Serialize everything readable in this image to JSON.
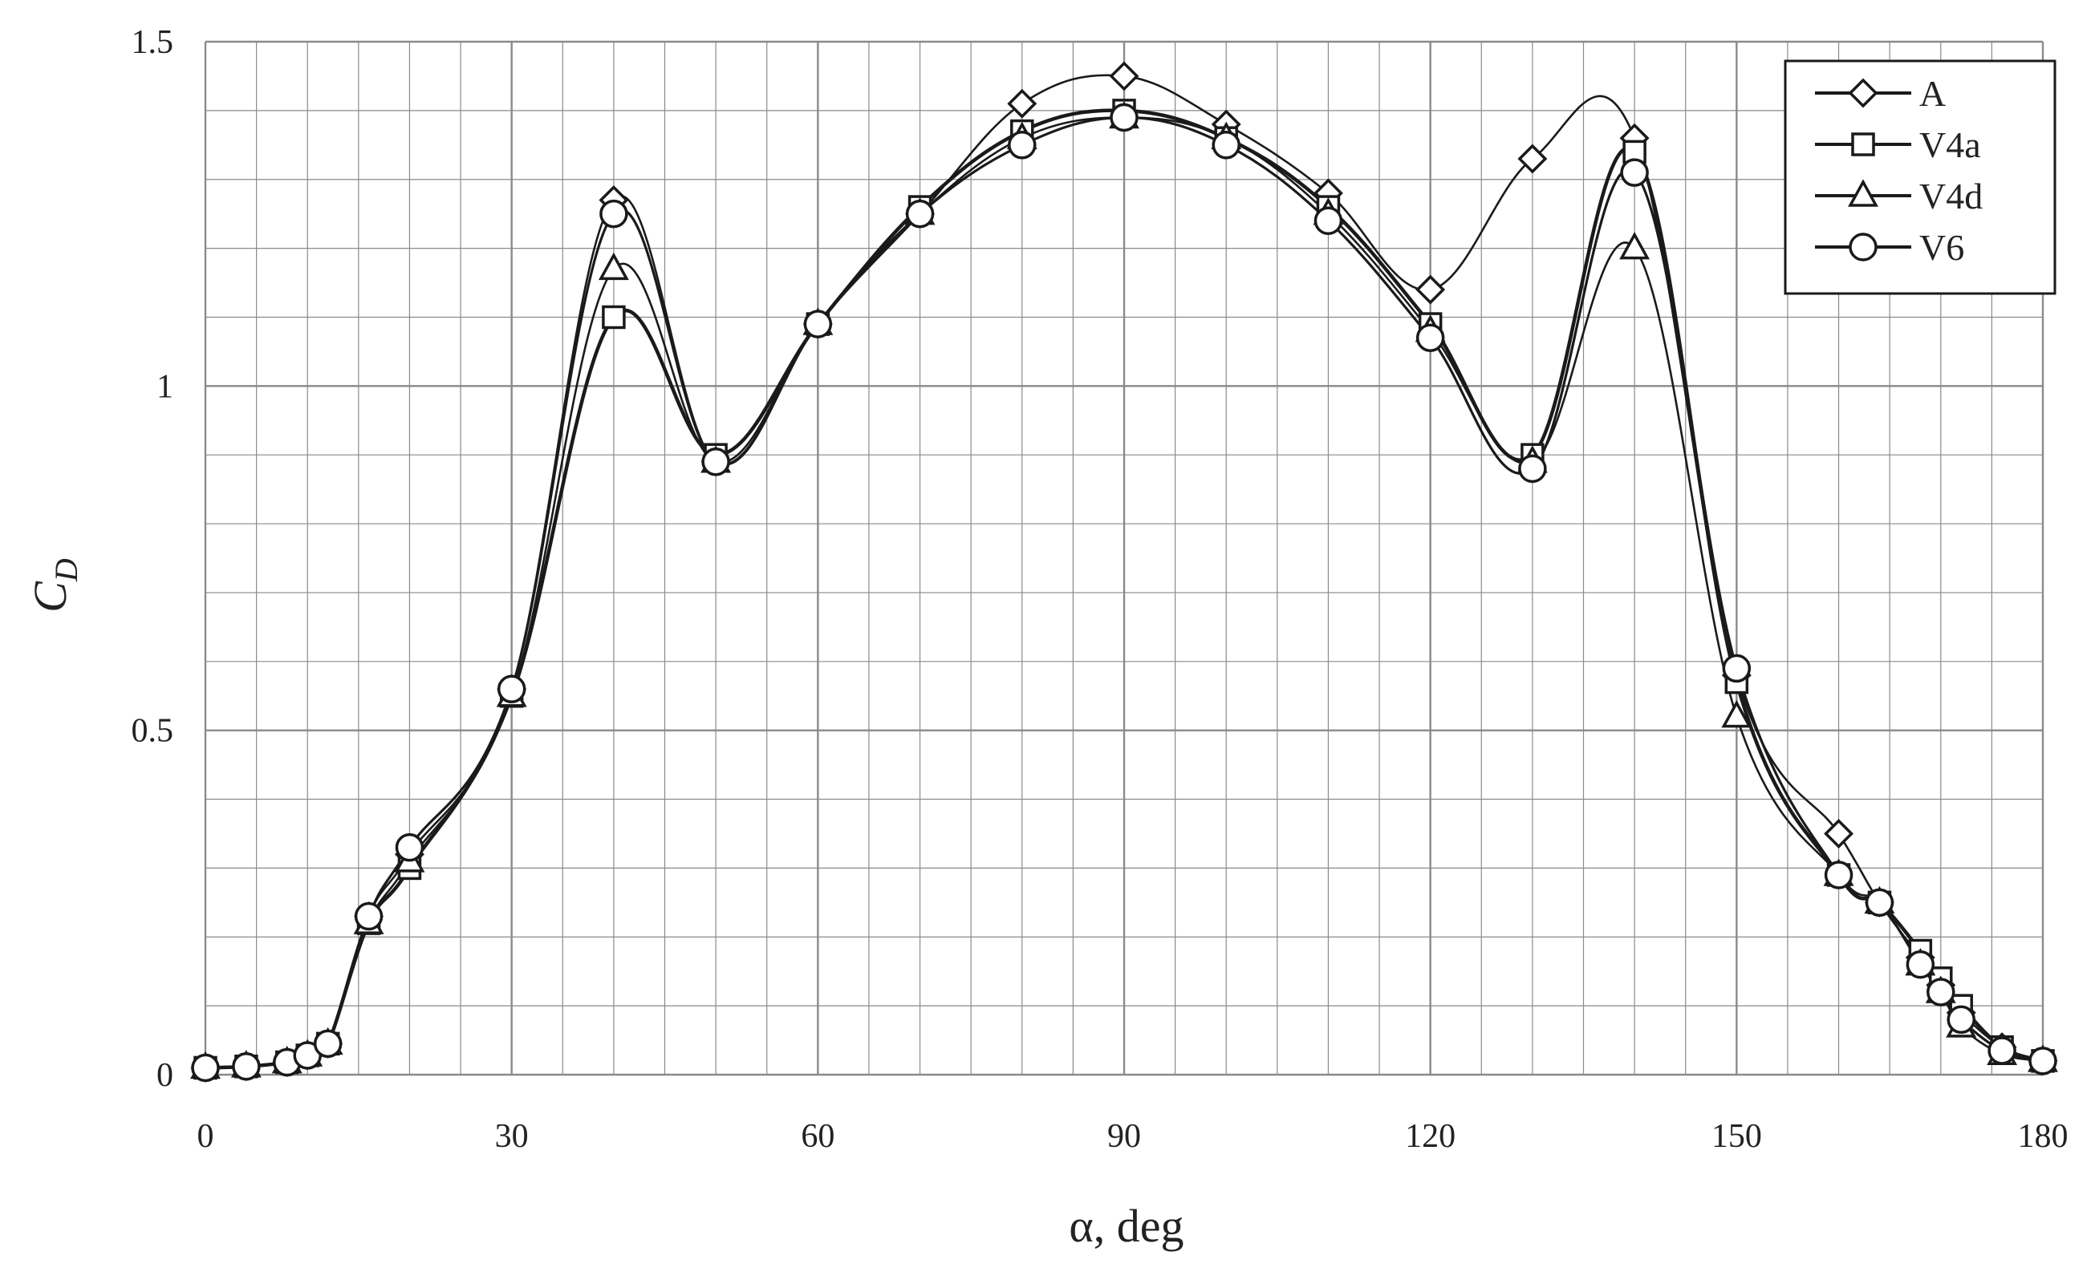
{
  "chart_data": {
    "type": "line",
    "title": "",
    "xlabel": "α, deg",
    "ylabel": "C",
    "ylabel_subscript": "D",
    "xlim": [
      0,
      180
    ],
    "ylim": [
      0,
      1.5
    ],
    "x_major_ticks": [
      0,
      30,
      60,
      90,
      120,
      150,
      180
    ],
    "x_tick_labels": [
      "0",
      "30",
      "60",
      "90",
      "120",
      "150",
      "180"
    ],
    "y_major_ticks": [
      0,
      0.5,
      1,
      1.5
    ],
    "y_tick_labels": [
      "0",
      "0.5",
      "1",
      "1.5"
    ],
    "x_minor_step": 5,
    "y_minor_step": 0.1,
    "grid": true,
    "legend_position": "top-right",
    "series": [
      {
        "name": "A",
        "marker": "diamond",
        "points": [
          [
            0,
            0.01
          ],
          [
            4,
            0.012
          ],
          [
            8,
            0.018
          ],
          [
            10,
            0.028
          ],
          [
            12,
            0.045
          ],
          [
            16,
            0.23
          ],
          [
            20,
            0.32
          ],
          [
            30,
            0.56
          ],
          [
            40,
            1.27
          ],
          [
            50,
            0.89
          ],
          [
            60,
            1.09
          ],
          [
            70,
            1.25
          ],
          [
            80,
            1.41
          ],
          [
            90,
            1.45
          ],
          [
            100,
            1.38
          ],
          [
            110,
            1.28
          ],
          [
            120,
            1.14
          ],
          [
            130,
            1.33
          ],
          [
            140,
            1.36
          ],
          [
            150,
            0.58
          ],
          [
            160,
            0.35
          ],
          [
            164,
            0.25
          ],
          [
            168,
            0.17
          ],
          [
            170,
            0.13
          ],
          [
            172,
            0.09
          ],
          [
            176,
            0.04
          ],
          [
            180,
            0.02
          ]
        ]
      },
      {
        "name": "V4a",
        "marker": "square",
        "points": [
          [
            0,
            0.01
          ],
          [
            4,
            0.012
          ],
          [
            8,
            0.018
          ],
          [
            10,
            0.028
          ],
          [
            12,
            0.045
          ],
          [
            16,
            0.22
          ],
          [
            20,
            0.3
          ],
          [
            30,
            0.55
          ],
          [
            40,
            1.1
          ],
          [
            50,
            0.9
          ],
          [
            60,
            1.09
          ],
          [
            70,
            1.26
          ],
          [
            80,
            1.37
          ],
          [
            90,
            1.4
          ],
          [
            100,
            1.36
          ],
          [
            110,
            1.26
          ],
          [
            120,
            1.09
          ],
          [
            130,
            0.9
          ],
          [
            140,
            1.34
          ],
          [
            150,
            0.57
          ],
          [
            160,
            0.29
          ],
          [
            164,
            0.25
          ],
          [
            168,
            0.18
          ],
          [
            170,
            0.14
          ],
          [
            172,
            0.1
          ],
          [
            176,
            0.04
          ],
          [
            180,
            0.02
          ]
        ]
      },
      {
        "name": "V4d",
        "marker": "triangle",
        "points": [
          [
            0,
            0.01
          ],
          [
            4,
            0.012
          ],
          [
            8,
            0.018
          ],
          [
            10,
            0.028
          ],
          [
            12,
            0.045
          ],
          [
            16,
            0.22
          ],
          [
            20,
            0.31
          ],
          [
            30,
            0.55
          ],
          [
            40,
            1.17
          ],
          [
            50,
            0.89
          ],
          [
            60,
            1.09
          ],
          [
            70,
            1.25
          ],
          [
            80,
            1.36
          ],
          [
            90,
            1.39
          ],
          [
            100,
            1.36
          ],
          [
            110,
            1.25
          ],
          [
            120,
            1.08
          ],
          [
            130,
            0.89
          ],
          [
            140,
            1.2
          ],
          [
            150,
            0.52
          ],
          [
            160,
            0.29
          ],
          [
            164,
            0.25
          ],
          [
            168,
            0.16
          ],
          [
            170,
            0.12
          ],
          [
            172,
            0.07
          ],
          [
            176,
            0.03
          ],
          [
            180,
            0.02
          ]
        ]
      },
      {
        "name": "V6",
        "marker": "circle",
        "points": [
          [
            0,
            0.01
          ],
          [
            4,
            0.012
          ],
          [
            8,
            0.018
          ],
          [
            10,
            0.028
          ],
          [
            12,
            0.045
          ],
          [
            16,
            0.23
          ],
          [
            20,
            0.33
          ],
          [
            30,
            0.56
          ],
          [
            40,
            1.25
          ],
          [
            50,
            0.89
          ],
          [
            60,
            1.09
          ],
          [
            70,
            1.25
          ],
          [
            80,
            1.35
          ],
          [
            90,
            1.39
          ],
          [
            100,
            1.35
          ],
          [
            110,
            1.24
          ],
          [
            120,
            1.07
          ],
          [
            130,
            0.88
          ],
          [
            140,
            1.31
          ],
          [
            150,
            0.59
          ],
          [
            160,
            0.29
          ],
          [
            164,
            0.25
          ],
          [
            168,
            0.16
          ],
          [
            170,
            0.12
          ],
          [
            172,
            0.08
          ],
          [
            176,
            0.035
          ],
          [
            180,
            0.02
          ]
        ]
      }
    ]
  },
  "colors": {
    "line": "#1a1a1a",
    "marker_fill": "#ffffff",
    "grid": "#8a8a8a",
    "text": "#222222"
  }
}
